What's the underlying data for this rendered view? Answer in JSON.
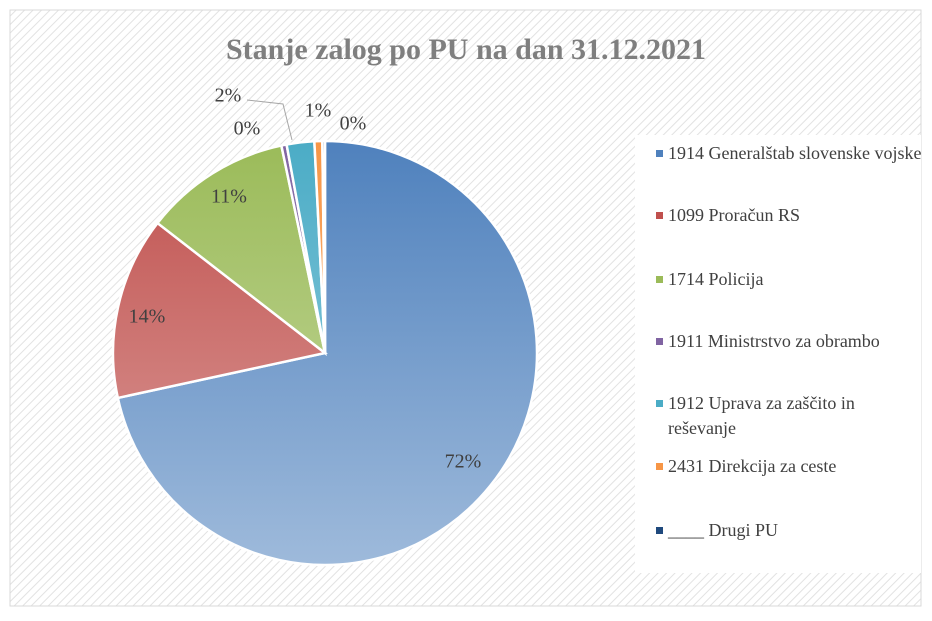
{
  "chart_data": {
    "type": "pie",
    "title": "Stanje zalog po PU na dan 31.12.2021",
    "categories": [
      "1914 Generalštab slovenske vojske",
      "1099 Proračun RS",
      "1714 Policija",
      "1911 Ministrstvo za obrambo",
      "1912 Uprava za zaščito in reševanje",
      "2431 Direkcija za ceste",
      "____ Drugi PU"
    ],
    "values": [
      71.6,
      13.9,
      11.2,
      0.4,
      2.1,
      0.6,
      0.2
    ],
    "value_labels": [
      "72%",
      "14%",
      "11%",
      "0%",
      "2%",
      "1%",
      "0%"
    ],
    "colors": [
      "#4f81bd",
      "#c0504d",
      "#9bbb59",
      "#8064a2",
      "#4bacc6",
      "#f79646",
      "#1f497d"
    ],
    "legend": "right"
  }
}
